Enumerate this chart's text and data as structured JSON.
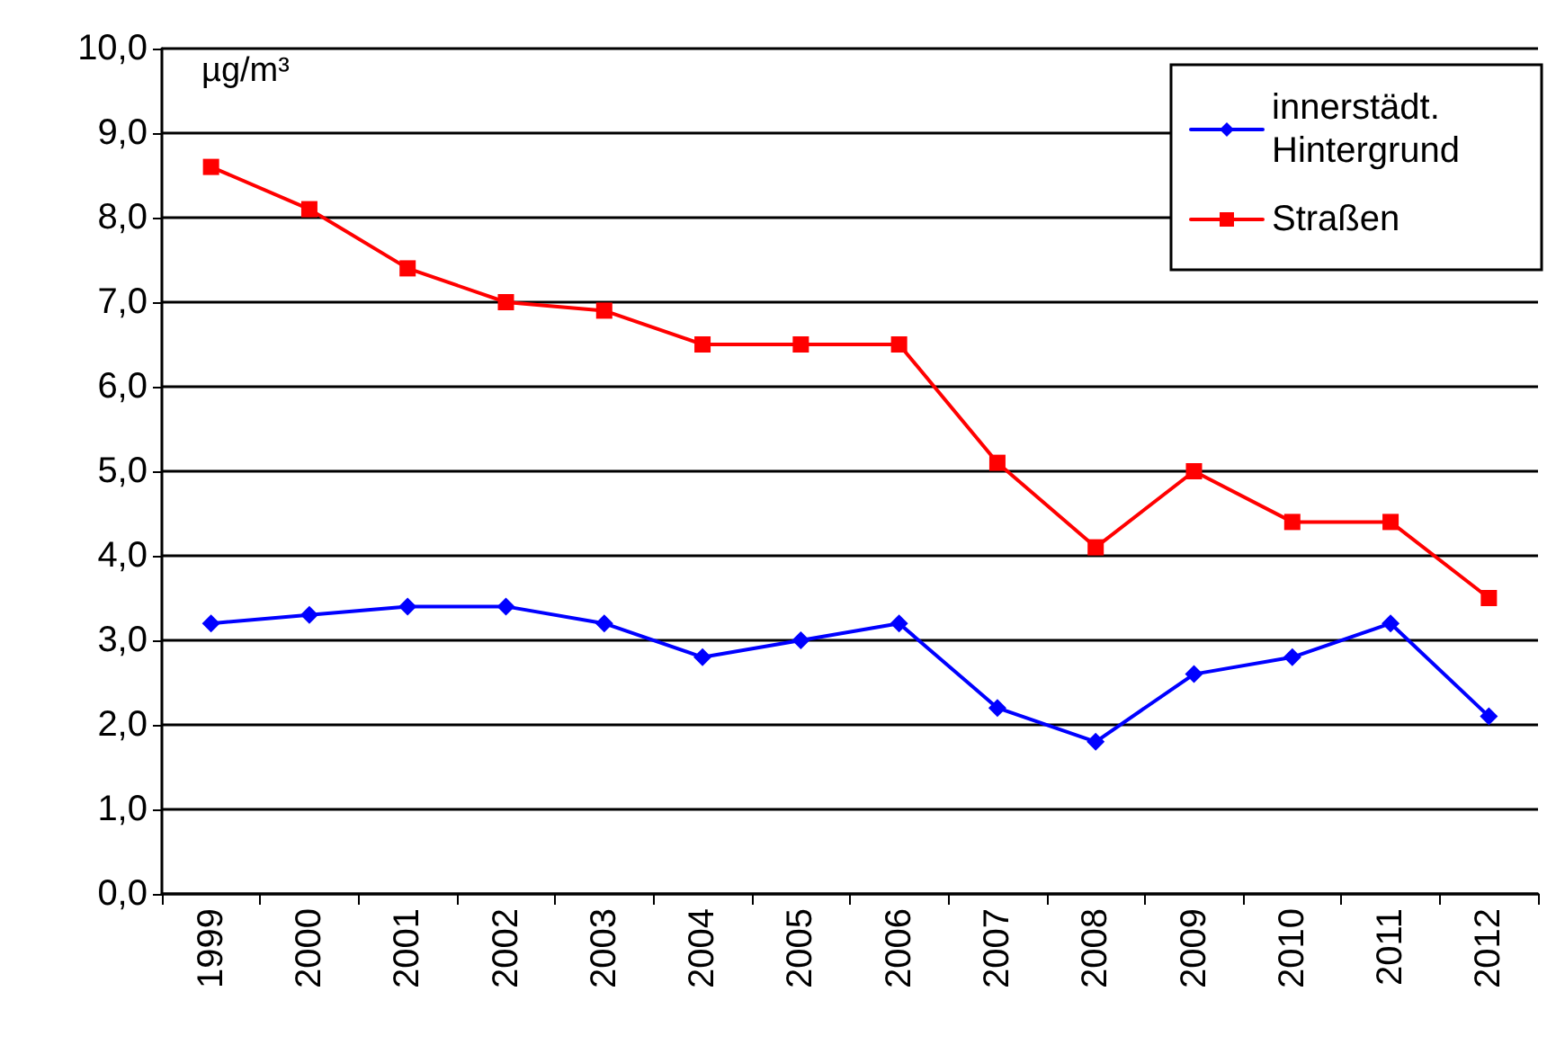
{
  "chart_data": {
    "type": "line",
    "ylabel": "µg/m³",
    "categories": [
      "1999",
      "2000",
      "2001",
      "2002",
      "2003",
      "2004",
      "2005",
      "2006",
      "2007",
      "2008",
      "2009",
      "2010",
      "2011",
      "2012"
    ],
    "series": [
      {
        "name": "innerstädt. Hintergrund",
        "color": "#0000ff",
        "marker": "diamond",
        "values": [
          3.2,
          3.3,
          3.4,
          3.4,
          3.2,
          2.8,
          3.0,
          3.2,
          2.2,
          1.8,
          2.6,
          2.8,
          3.2,
          2.1
        ]
      },
      {
        "name": "Straßen",
        "color": "#ff0000",
        "marker": "square",
        "values": [
          8.6,
          8.1,
          7.4,
          7.0,
          6.9,
          6.5,
          6.5,
          6.5,
          5.1,
          4.1,
          5.0,
          4.4,
          4.4,
          3.5
        ]
      }
    ],
    "ylim": [
      0,
      10
    ],
    "yticks": [
      {
        "value": 0,
        "label": "0,0"
      },
      {
        "value": 1,
        "label": "1,0"
      },
      {
        "value": 2,
        "label": "2,0"
      },
      {
        "value": 3,
        "label": "3,0"
      },
      {
        "value": 4,
        "label": "4,0"
      },
      {
        "value": 5,
        "label": "5,0"
      },
      {
        "value": 6,
        "label": "6,0"
      },
      {
        "value": 7,
        "label": "7,0"
      },
      {
        "value": 8,
        "label": "8,0"
      },
      {
        "value": 9,
        "label": "9,0"
      },
      {
        "value": 10,
        "label": "10,0"
      }
    ],
    "grid": "y",
    "legend": "top right",
    "line_style": "solid"
  }
}
